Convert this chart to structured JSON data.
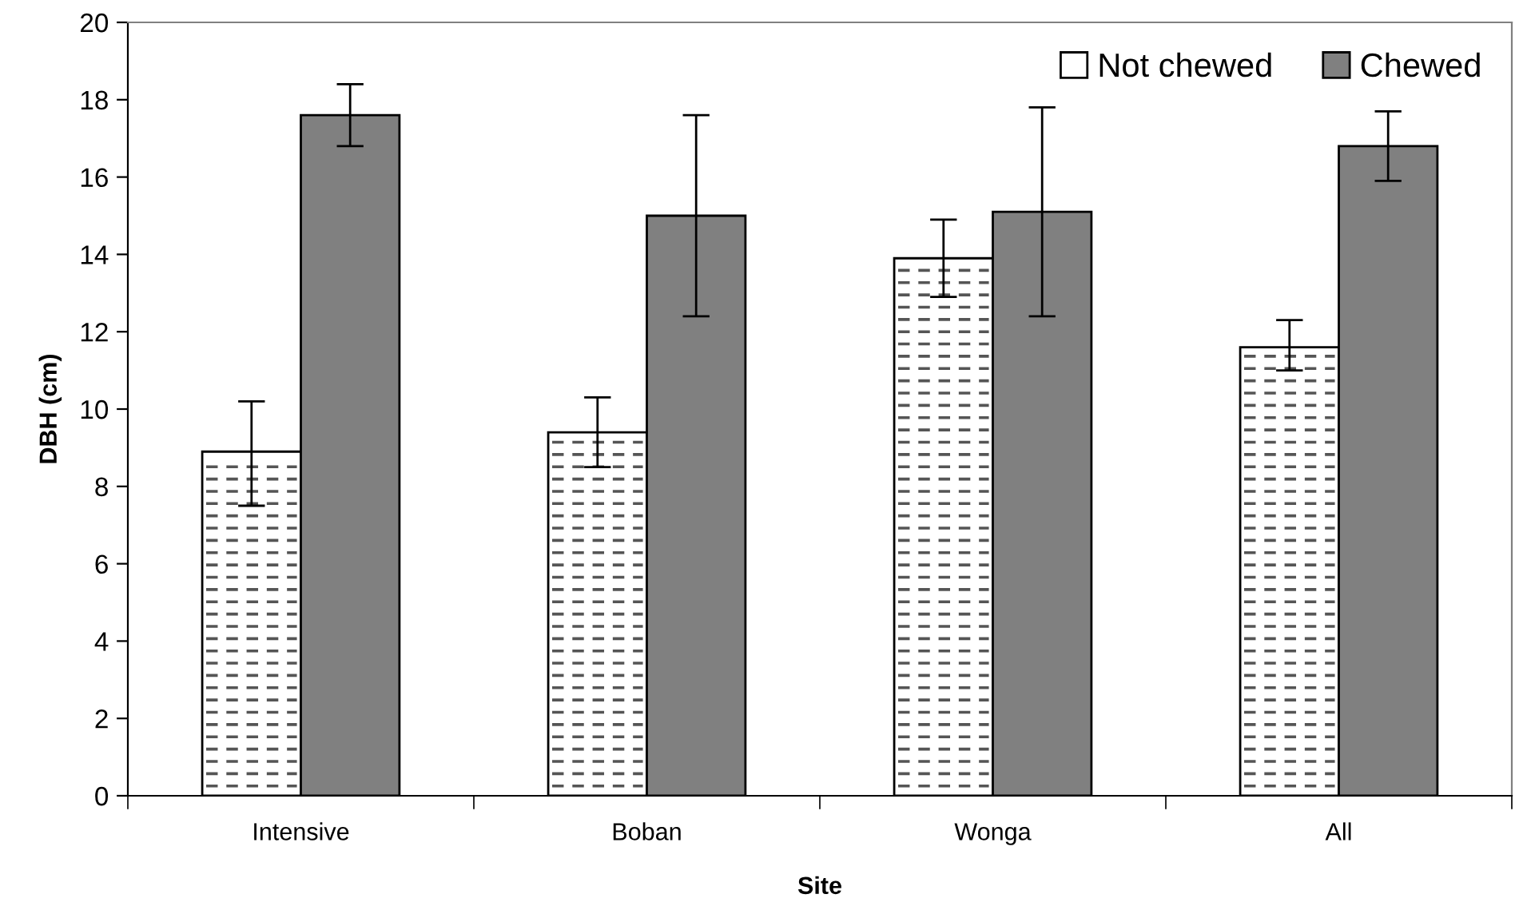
{
  "chart_data": {
    "type": "bar",
    "xlabel": "Site",
    "ylabel": "DBH (cm)",
    "categories": [
      "Intensive",
      "Boban",
      "Wonga",
      "All"
    ],
    "series": [
      {
        "name": "Not chewed",
        "color": "#ffffff",
        "values": [
          8.9,
          9.4,
          13.9,
          11.6
        ],
        "errors": [
          [
            7.5,
            10.2
          ],
          [
            8.5,
            10.3
          ],
          [
            12.9,
            14.9
          ],
          [
            11.0,
            12.3
          ]
        ]
      },
      {
        "name": "Chewed",
        "color": "#808080",
        "values": [
          17.6,
          15.0,
          15.1,
          16.8
        ],
        "errors": [
          [
            16.8,
            18.4
          ],
          [
            12.4,
            17.6
          ],
          [
            12.4,
            17.8
          ],
          [
            15.9,
            17.7
          ]
        ]
      }
    ],
    "ylim": [
      0,
      20
    ],
    "yticks": [
      0,
      2,
      4,
      6,
      8,
      10,
      12,
      14,
      16,
      18,
      20
    ],
    "grid": false,
    "legend": "top right"
  }
}
